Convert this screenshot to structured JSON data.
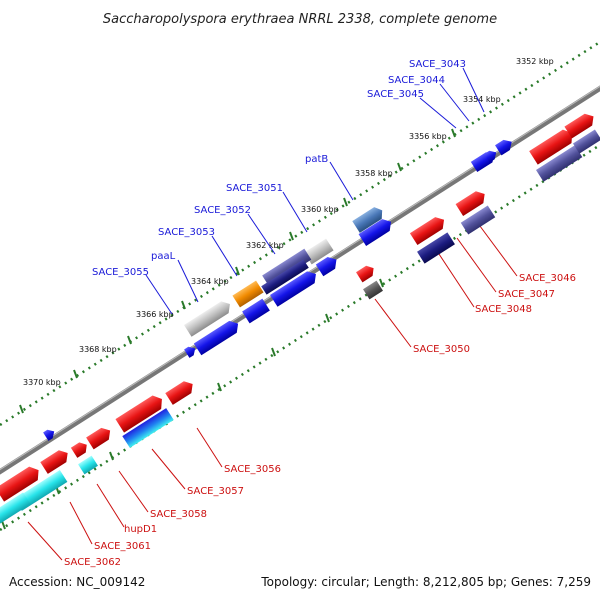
{
  "title": "Saccharopolyspora erythraea NRRL 2338, complete genome",
  "footer": {
    "accession": "Accession: NC_009142",
    "summary": "Topology: circular; Length: 8,212,805 bp; Genes: 7,259"
  },
  "ticks": [
    "3352 kbp",
    "3354 kbp",
    "3356 kbp",
    "3358 kbp",
    "3360 kbp",
    "3362 kbp",
    "3364 kbp",
    "3366 kbp",
    "3368 kbp",
    "3370 kbp"
  ],
  "labels_top": [
    "SACE_3043",
    "SACE_3044",
    "SACE_3045",
    "patB",
    "SACE_3051",
    "SACE_3052",
    "SACE_3053",
    "paaL",
    "SACE_3055"
  ],
  "labels_bottom": [
    "SACE_3046",
    "SACE_3047",
    "SACE_3048",
    "SACE_3050",
    "SACE_3056",
    "SACE_3057",
    "SACE_3058",
    "hupD1",
    "SACE_3061",
    "SACE_3062"
  ],
  "colors": {
    "red": "#e01010",
    "blue": "#1010e0",
    "dark_navy": "#1a1a7a",
    "slate": "#4a4a90",
    "steel_blue": "#4070b0",
    "gray": "#b8b8b8",
    "orange": "#ee8800",
    "cyan": "#20e0e8",
    "dark_gray": "#555555",
    "tick_green": "#2a7a2a"
  }
}
